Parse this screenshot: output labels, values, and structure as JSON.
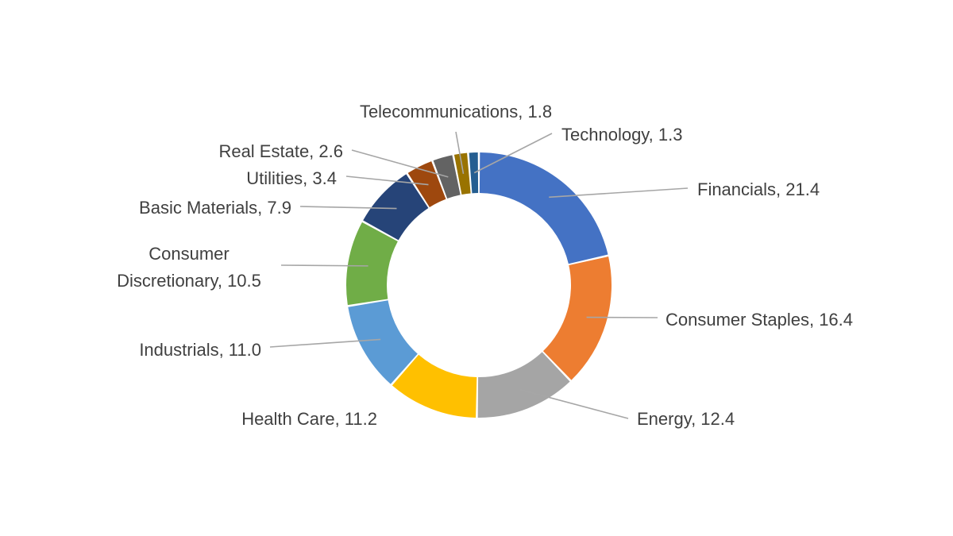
{
  "chart_data": {
    "type": "pie",
    "subtype": "doughnut",
    "title": "",
    "legend": "none",
    "slices": [
      {
        "label": "Financials",
        "value": 21.4,
        "display": "Financials, 21.4",
        "color": "#4472C4"
      },
      {
        "label": "Consumer Staples",
        "value": 16.4,
        "display": "Consumer Staples, 16.4",
        "color": "#ED7D31"
      },
      {
        "label": "Energy",
        "value": 12.4,
        "display": "Energy, 12.4",
        "color": "#A5A5A5"
      },
      {
        "label": "Health Care",
        "value": 11.2,
        "display": "Health Care, 11.2",
        "color": "#FFC000"
      },
      {
        "label": "Industrials",
        "value": 11.0,
        "display": "Industrials, 11.0",
        "color": "#5B9BD5"
      },
      {
        "label": "Consumer Discretionary",
        "value": 10.5,
        "display": "Consumer Discretionary, 10.5",
        "display_lines": [
          "Consumer",
          "Discretionary, 10.5"
        ],
        "color": "#70AD47"
      },
      {
        "label": "Basic Materials",
        "value": 7.9,
        "display": "Basic Materials, 7.9",
        "color": "#264478"
      },
      {
        "label": "Utilities",
        "value": 3.4,
        "display": "Utilities, 3.4",
        "color": "#9E480E"
      },
      {
        "label": "Real Estate",
        "value": 2.6,
        "display": "Real Estate, 2.6",
        "color": "#636363"
      },
      {
        "label": "Telecommunications",
        "value": 1.8,
        "display": "Telecommunications, 1.8",
        "color": "#997300"
      },
      {
        "label": "Technology",
        "value": 1.3,
        "display": "Technology, 1.3",
        "color": "#255E91"
      }
    ]
  }
}
